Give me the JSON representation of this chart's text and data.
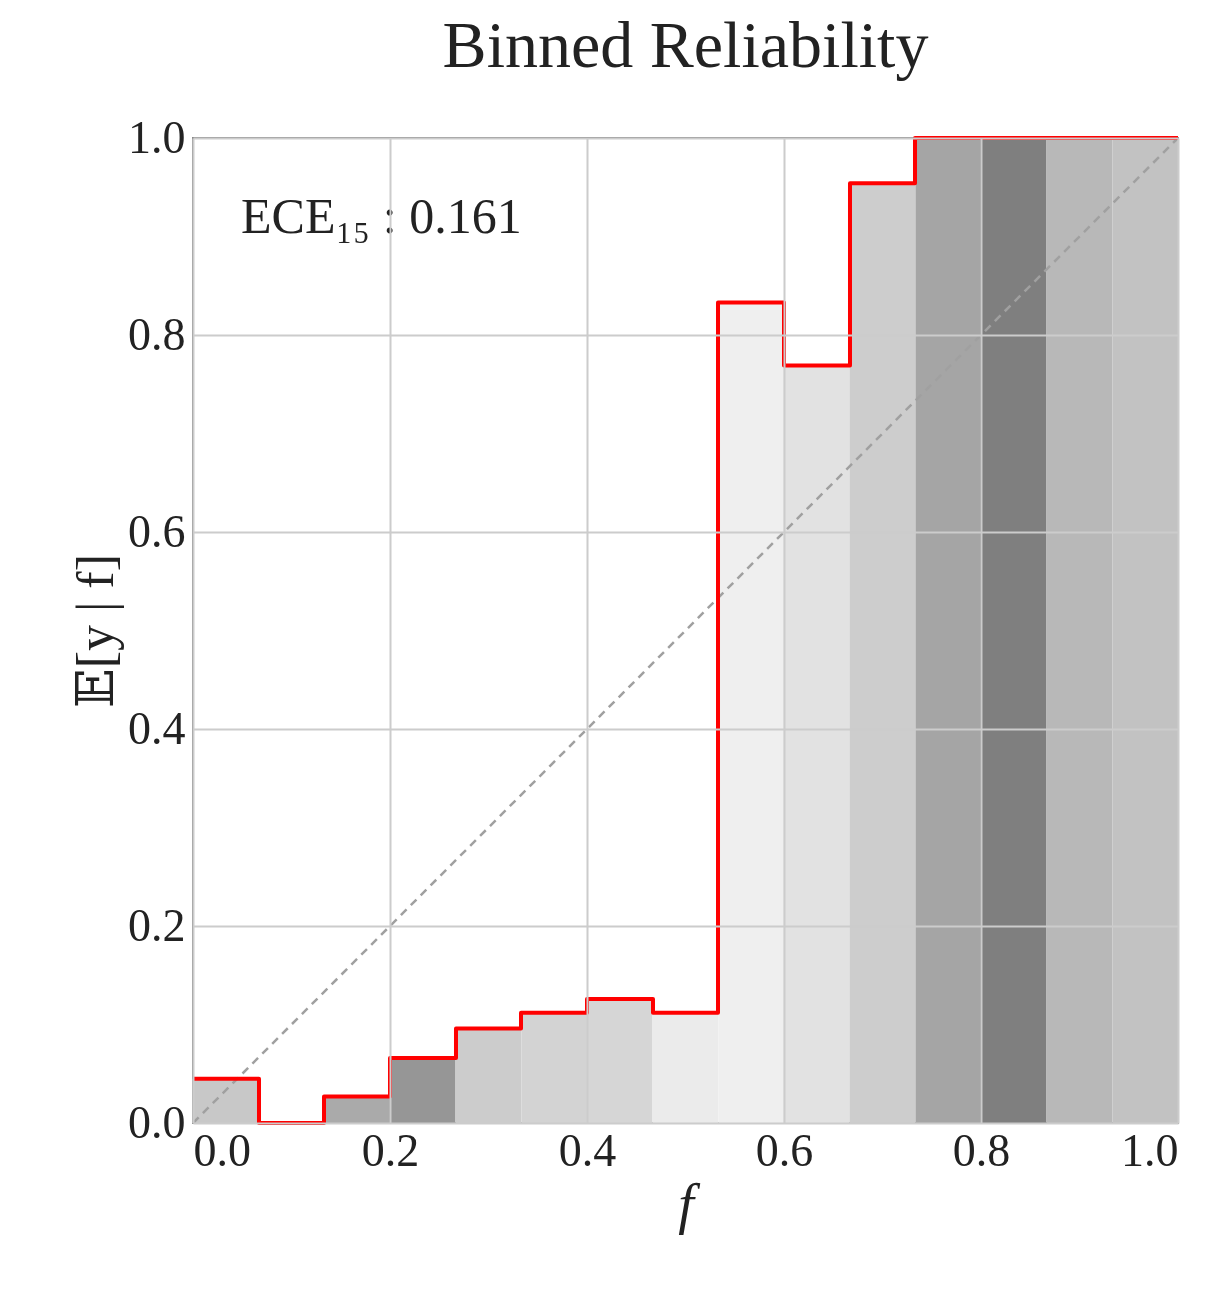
{
  "chart_data": {
    "type": "bar",
    "title": "Binned Reliability",
    "xlabel": "f",
    "ylabel": "𝔼[y | f]",
    "annotations": [
      "ECE₁₅ : 0.161"
    ],
    "xlim": [
      0,
      1
    ],
    "ylim": [
      0,
      1
    ],
    "xticks": [
      {
        "value": 0,
        "label": "0.0"
      },
      0.2,
      0.4,
      0.6,
      0.8,
      {
        "value": 1,
        "label": "1.0"
      }
    ],
    "yticks": [
      {
        "value": 0,
        "label": "0.0"
      },
      0.2,
      0.4,
      0.6,
      0.8,
      {
        "value": 1,
        "label": "1.0"
      }
    ],
    "grid": true,
    "series": [
      {
        "x": [
          0.033,
          0.1,
          0.167,
          0.233,
          0.3,
          0.367,
          0.433,
          0.5,
          0.567,
          0.633,
          0.7,
          0.767,
          0.833,
          0.9,
          0.967
        ],
        "values": [
          0.045,
          0,
          0.027,
          0.066,
          0.096,
          0.112,
          0.126,
          0.112,
          0.833,
          0.769,
          0.954,
          1,
          1,
          1,
          1
        ],
        "colors": [
          "#c8c8c8",
          null,
          "#aaaaaa",
          "#969696",
          "#cccccc",
          "#d3d3d3",
          "#d6d6d6",
          "#ebebeb",
          "#efefef",
          "#e2e2e2",
          "#cdcdcd",
          "#a5a5a5",
          "#7f7f7f",
          "#b8b8b8",
          "#c2c2c2"
        ]
      },
      {
        "type": "line",
        "x": [
          0,
          1
        ],
        "values": [
          0,
          1
        ],
        "color": "#a0a0a0",
        "line_style": "dashed"
      },
      {
        "type": "step",
        "x": [
          0,
          0.067,
          0.133,
          0.2,
          0.267,
          0.333,
          0.4,
          0.467,
          0.533,
          0.6,
          0.667,
          0.733,
          0.8,
          0.867,
          0.933,
          1
        ],
        "values": [
          0.045,
          0,
          0.027,
          0.066,
          0.096,
          0.112,
          0.126,
          0.112,
          0.833,
          0.769,
          0.954,
          1,
          1,
          1,
          1,
          1
        ],
        "color": "#ff0000"
      }
    ]
  }
}
